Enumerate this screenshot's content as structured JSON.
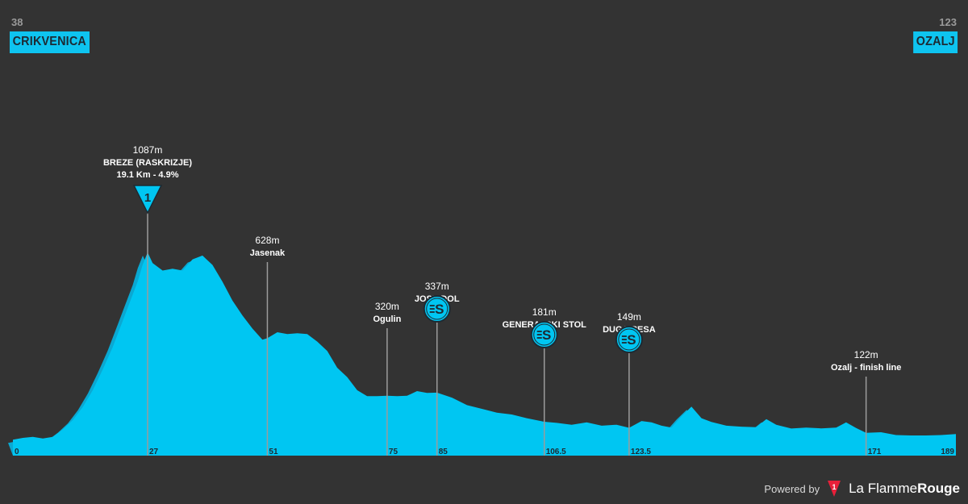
{
  "start": {
    "km_label": "38",
    "city": "CRIKVENICA"
  },
  "finish": {
    "km_label": "123",
    "city": "OZALJ"
  },
  "footer": {
    "powered": "Powered by",
    "brand_light": "La Flamme",
    "brand_bold": "Rouge",
    "logo_number": "1"
  },
  "colors": {
    "background": "#333333",
    "profile_fill": "#00c6f2",
    "profile_shadow": "#0aa8d2",
    "marker_line": "#9c9c9c",
    "accent_red": "#e8203a"
  },
  "chart_data": {
    "type": "area",
    "xlim": [
      0,
      189
    ],
    "elevation_profile": [
      [
        0,
        85
      ],
      [
        2,
        95
      ],
      [
        4,
        100
      ],
      [
        6,
        92
      ],
      [
        8,
        100
      ],
      [
        10,
        140
      ],
      [
        12,
        190
      ],
      [
        14,
        260
      ],
      [
        16,
        350
      ],
      [
        18,
        460
      ],
      [
        20,
        580
      ],
      [
        22,
        720
      ],
      [
        24,
        860
      ],
      [
        25,
        930
      ],
      [
        26,
        1020
      ],
      [
        27,
        1087
      ],
      [
        28,
        1030
      ],
      [
        30,
        990
      ],
      [
        32,
        1000
      ],
      [
        34,
        990
      ],
      [
        36,
        1050
      ],
      [
        38,
        1070
      ],
      [
        40,
        1020
      ],
      [
        42,
        930
      ],
      [
        44,
        830
      ],
      [
        46,
        750
      ],
      [
        48,
        680
      ],
      [
        50,
        620
      ],
      [
        51,
        628
      ],
      [
        53,
        660
      ],
      [
        55,
        650
      ],
      [
        57,
        655
      ],
      [
        59,
        650
      ],
      [
        61,
        610
      ],
      [
        63,
        560
      ],
      [
        65,
        470
      ],
      [
        67,
        420
      ],
      [
        69,
        350
      ],
      [
        71,
        318
      ],
      [
        73,
        318
      ],
      [
        75,
        320
      ],
      [
        77,
        318
      ],
      [
        79,
        320
      ],
      [
        81,
        345
      ],
      [
        83,
        335
      ],
      [
        85,
        337
      ],
      [
        88,
        310
      ],
      [
        91,
        270
      ],
      [
        94,
        250
      ],
      [
        97,
        230
      ],
      [
        100,
        220
      ],
      [
        103,
        200
      ],
      [
        106.5,
        181
      ],
      [
        109,
        175
      ],
      [
        112,
        165
      ],
      [
        115,
        178
      ],
      [
        118,
        160
      ],
      [
        121,
        165
      ],
      [
        123.5,
        149
      ],
      [
        126,
        185
      ],
      [
        128,
        178
      ],
      [
        130,
        160
      ],
      [
        132,
        150
      ],
      [
        134,
        210
      ],
      [
        136,
        262
      ],
      [
        138,
        200
      ],
      [
        140,
        180
      ],
      [
        143,
        160
      ],
      [
        146,
        155
      ],
      [
        149,
        152
      ],
      [
        151,
        195
      ],
      [
        153,
        165
      ],
      [
        156,
        145
      ],
      [
        159,
        150
      ],
      [
        162,
        146
      ],
      [
        165,
        150
      ],
      [
        167,
        178
      ],
      [
        169,
        148
      ],
      [
        171,
        122
      ],
      [
        174,
        125
      ],
      [
        177,
        110
      ],
      [
        180,
        108
      ],
      [
        183,
        108
      ],
      [
        186,
        110
      ],
      [
        189,
        115
      ]
    ],
    "x_ticks": [
      "0",
      "27",
      "51",
      "75",
      "85",
      "106.5",
      "123.5",
      "171",
      "189"
    ],
    "markers": [
      {
        "km": 27,
        "altitude_label": "1087m",
        "name": "BREZE (RASKRIZJE)",
        "detail": "19.1 Km - 4.9%",
        "kind": "climb",
        "category": "1"
      },
      {
        "km": 51,
        "altitude_label": "628m",
        "name": "Jasenak",
        "kind": "town"
      },
      {
        "km": 75,
        "altitude_label": "320m",
        "name": "Ogulin",
        "kind": "town"
      },
      {
        "km": 85,
        "altitude_label": "337m",
        "name": "JOSIPDOL",
        "kind": "sprint"
      },
      {
        "km": 106.5,
        "altitude_label": "181m",
        "name": "GENERALSKI STOL",
        "kind": "sprint"
      },
      {
        "km": 123.5,
        "altitude_label": "149m",
        "name": "DUGA RESA",
        "kind": "sprint"
      },
      {
        "km": 171,
        "altitude_label": "122m",
        "name": "Ozalj - finish line",
        "kind": "town"
      }
    ]
  }
}
